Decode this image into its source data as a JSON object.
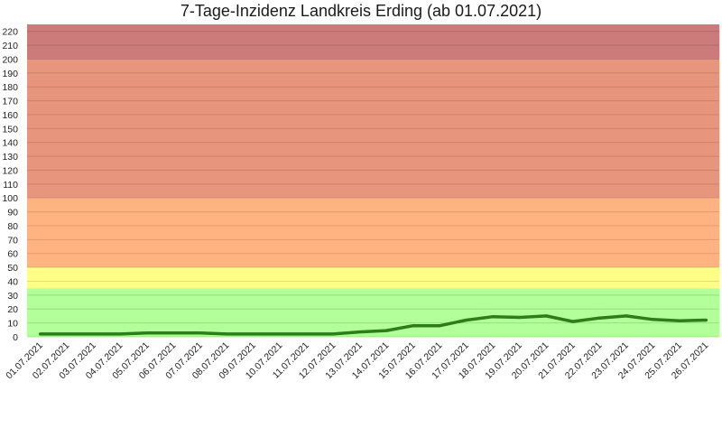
{
  "chart_data": {
    "type": "line",
    "title": "7-Tage-Inzidenz Landkreis Erding (ab 01.07.2021)",
    "xlabel": "",
    "ylabel": "",
    "ylim": [
      0,
      225
    ],
    "yticks": [
      0,
      10,
      20,
      30,
      40,
      50,
      60,
      70,
      80,
      90,
      100,
      110,
      120,
      130,
      140,
      150,
      160,
      170,
      180,
      190,
      200,
      210,
      220
    ],
    "grid": true,
    "legend": "none",
    "bands": [
      {
        "from": 0,
        "to": 35,
        "color": "#b3ff99"
      },
      {
        "from": 35,
        "to": 50,
        "color": "#ffff88"
      },
      {
        "from": 50,
        "to": 100,
        "color": "#ffb380"
      },
      {
        "from": 100,
        "to": 200,
        "color": "#e8957d"
      },
      {
        "from": 200,
        "to": 225,
        "color": "#cc7a7a"
      }
    ],
    "categories": [
      "01.07.2021",
      "02.07.2021",
      "03.07.2021",
      "04.07.2021",
      "05.07.2021",
      "06.07.2021",
      "07.07.2021",
      "08.07.2021",
      "09.07.2021",
      "10.07.2021",
      "11.07.2021",
      "12.07.2021",
      "13.07.2021",
      "14.07.2021",
      "15.07.2021",
      "16.07.2021",
      "17.07.2021",
      "18.07.2021",
      "19.07.2021",
      "20.07.2021",
      "21.07.2021",
      "22.07.2021",
      "23.07.2021",
      "24.07.2021",
      "25.07.2021",
      "26.07.2021"
    ],
    "series": [
      {
        "color": "#2e7d1a",
        "values": [
          2,
          2,
          2,
          2,
          2.8,
          2.8,
          2.8,
          2,
          2,
          2,
          2,
          2,
          3.5,
          4.5,
          8,
          8,
          12,
          14.5,
          14,
          15,
          11,
          13.5,
          15,
          12.5,
          11.5,
          12
        ]
      }
    ]
  }
}
